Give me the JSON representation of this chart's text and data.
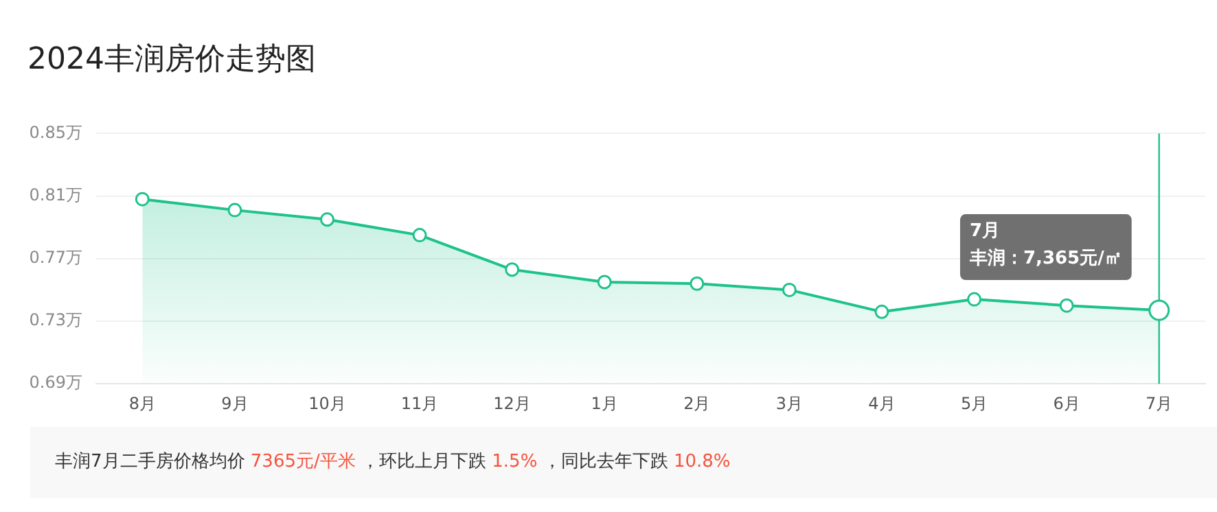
{
  "chart_data": {
    "type": "area",
    "title": "2024丰润房价走势图",
    "categories": [
      "8月",
      "9月",
      "10月",
      "11月",
      "12月",
      "1月",
      "2月",
      "3月",
      "4月",
      "5月",
      "6月",
      "7月"
    ],
    "series": [
      {
        "name": "丰润",
        "color": "#1ec28b",
        "values": [
          0.808,
          0.801,
          0.795,
          0.785,
          0.763,
          0.755,
          0.754,
          0.75,
          0.736,
          0.744,
          0.74,
          0.737
        ]
      }
    ],
    "ylim": [
      0.69,
      0.85
    ],
    "yticks": [
      {
        "value": 0.69,
        "label": "0.69万"
      },
      {
        "value": 0.73,
        "label": "0.73万"
      },
      {
        "value": 0.77,
        "label": "0.77万"
      },
      {
        "value": 0.81,
        "label": "0.81万"
      },
      {
        "value": 0.85,
        "label": "0.85万"
      }
    ],
    "grid": "y",
    "legend": false,
    "marker": "circle",
    "line_style": "solid",
    "ref_lines": [
      {
        "axis": "x",
        "value": "7月",
        "color": "#1ec28b"
      }
    ],
    "annotations": [
      "：7,365元/㎡",
      "丰润7月二手房价格均价 7365元/平米 ，环比上月下跌 1.5% ，同比去年下跌 10.8%"
    ]
  }
}
